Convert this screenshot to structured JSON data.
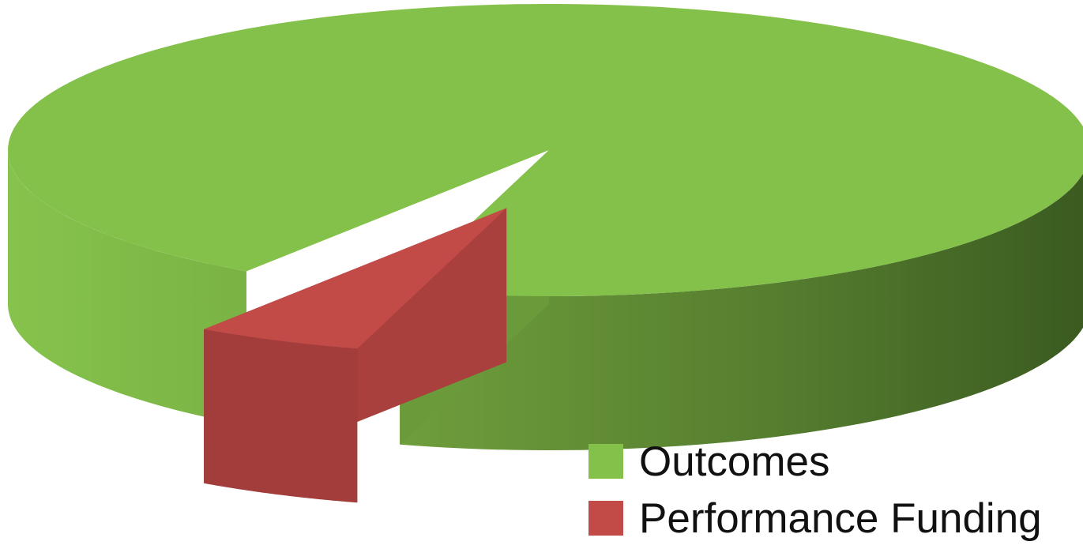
{
  "chart_data": {
    "type": "pie",
    "style": "3d-exploded",
    "title": "",
    "legend_position": "bottom-right",
    "slices": [
      {
        "label": "Outcomes",
        "value": 95,
        "color": "#84c14a"
      },
      {
        "label": "Performance Funding",
        "value": 5,
        "color": "#c24b48"
      }
    ]
  }
}
